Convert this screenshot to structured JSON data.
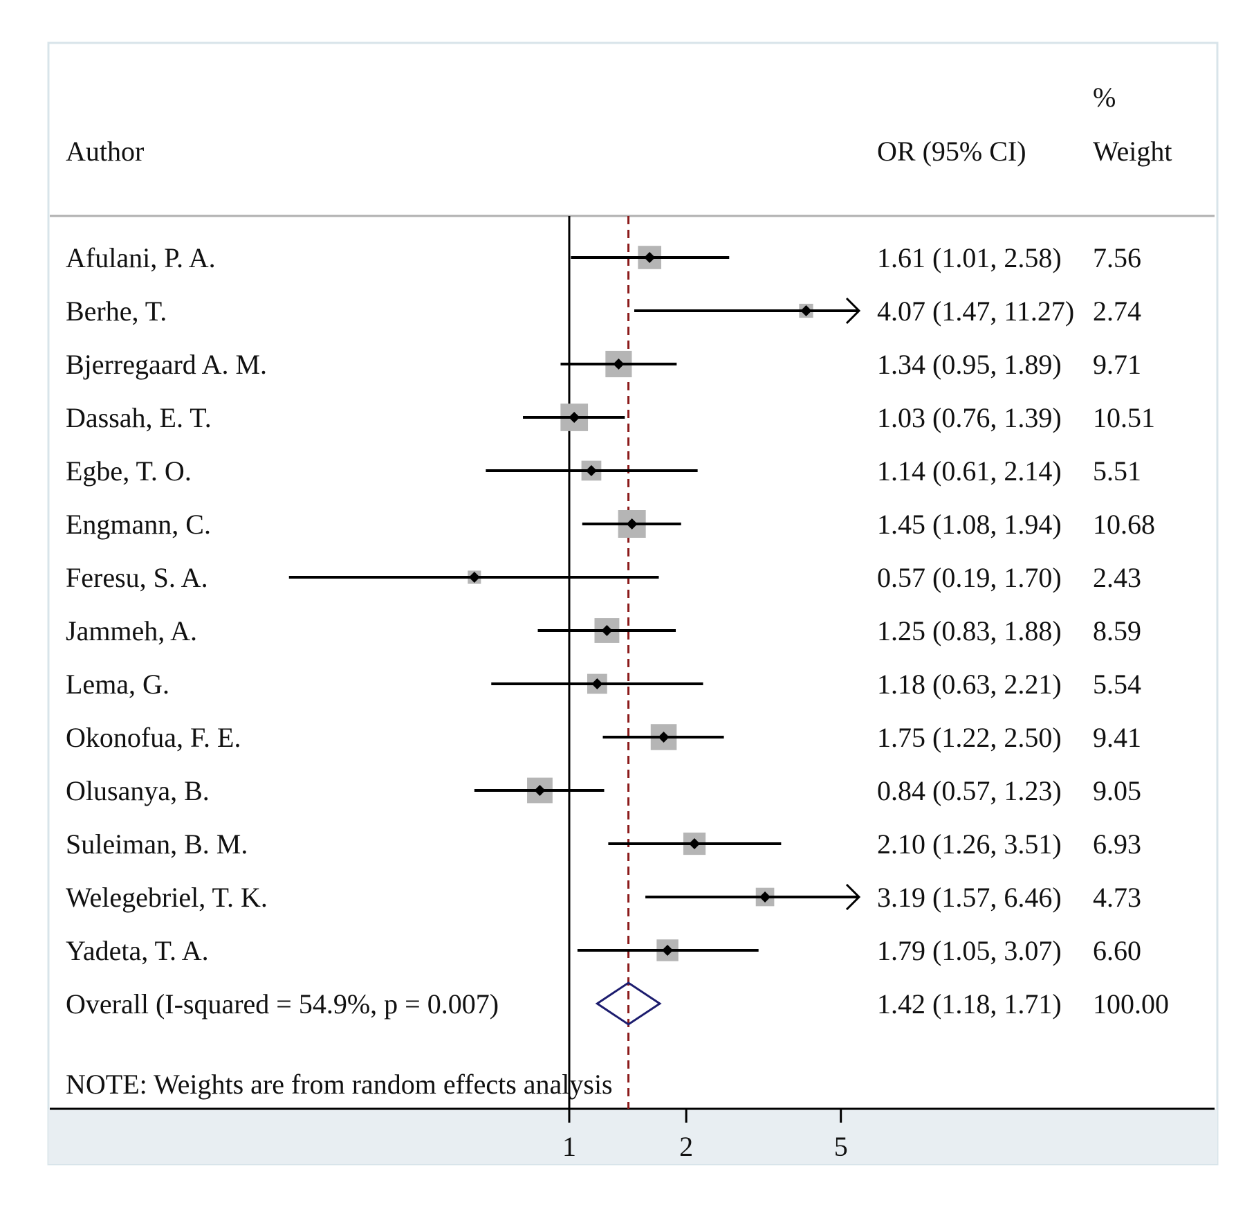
{
  "chart_data": {
    "type": "forest",
    "headers": {
      "study": "Author",
      "effect": "OR (95% CI)",
      "weight_line1": "%",
      "weight_line2": "Weight"
    },
    "studies": [
      {
        "author": "Afulani, P. A.",
        "or": 1.61,
        "lo": 1.01,
        "hi": 2.58,
        "ci_text": "1.61 (1.01, 2.58)",
        "weight": "7.56"
      },
      {
        "author": "Berhe, T.",
        "or": 4.07,
        "lo": 1.47,
        "hi": 11.27,
        "ci_text": "4.07 (1.47, 11.27)",
        "weight": "2.74"
      },
      {
        "author": "Bjerregaard A. M.",
        "or": 1.34,
        "lo": 0.95,
        "hi": 1.89,
        "ci_text": "1.34 (0.95, 1.89)",
        "weight": "9.71"
      },
      {
        "author": "Dassah, E. T.",
        "or": 1.03,
        "lo": 0.76,
        "hi": 1.39,
        "ci_text": "1.03 (0.76, 1.39)",
        "weight": "10.51"
      },
      {
        "author": "Egbe, T. O.",
        "or": 1.14,
        "lo": 0.61,
        "hi": 2.14,
        "ci_text": "1.14 (0.61, 2.14)",
        "weight": "5.51"
      },
      {
        "author": "Engmann, C.",
        "or": 1.45,
        "lo": 1.08,
        "hi": 1.94,
        "ci_text": "1.45 (1.08, 1.94)",
        "weight": "10.68"
      },
      {
        "author": "Feresu, S. A.",
        "or": 0.57,
        "lo": 0.19,
        "hi": 1.7,
        "ci_text": "0.57 (0.19, 1.70)",
        "weight": "2.43"
      },
      {
        "author": "Jammeh, A.",
        "or": 1.25,
        "lo": 0.83,
        "hi": 1.88,
        "ci_text": "1.25 (0.83, 1.88)",
        "weight": "8.59"
      },
      {
        "author": "Lema, G.",
        "or": 1.18,
        "lo": 0.63,
        "hi": 2.21,
        "ci_text": "1.18 (0.63, 2.21)",
        "weight": "5.54"
      },
      {
        "author": "Okonofua, F. E.",
        "or": 1.75,
        "lo": 1.22,
        "hi": 2.5,
        "ci_text": "1.75 (1.22, 2.50)",
        "weight": "9.41"
      },
      {
        "author": "Olusanya, B.",
        "or": 0.84,
        "lo": 0.57,
        "hi": 1.23,
        "ci_text": "0.84 (0.57, 1.23)",
        "weight": "9.05"
      },
      {
        "author": "Suleiman, B. M.",
        "or": 2.1,
        "lo": 1.26,
        "hi": 3.51,
        "ci_text": "2.10 (1.26, 3.51)",
        "weight": "6.93"
      },
      {
        "author": "Welegebriel, T. K.",
        "or": 3.19,
        "lo": 1.57,
        "hi": 6.46,
        "ci_text": "3.19 (1.57, 6.46)",
        "weight": "4.73"
      },
      {
        "author": "Yadeta, T. A.",
        "or": 1.79,
        "lo": 1.05,
        "hi": 3.07,
        "ci_text": "1.79 (1.05, 3.07)",
        "weight": "6.60"
      }
    ],
    "overall": {
      "label": "Overall  (I-squared = 54.9%, p = 0.007)",
      "or": 1.42,
      "lo": 1.18,
      "hi": 1.71,
      "ci_text": "1.42 (1.18, 1.71)",
      "weight": "100.00"
    },
    "note": "NOTE: Weights are from random effects analysis",
    "x_scale": "log",
    "x_ticks": [
      1,
      2,
      5
    ],
    "x_tick_labels": [
      "1",
      "2",
      "5"
    ],
    "null_line": 1,
    "colors": {
      "weight_box": "#b5b5b5",
      "point": "#000000",
      "ci_line": "#000000",
      "overall_line": "#8b1a1a",
      "diamond": "#1c1c6e",
      "axis_panel": "#e8eef2",
      "frame": "#d8e4ea"
    }
  }
}
